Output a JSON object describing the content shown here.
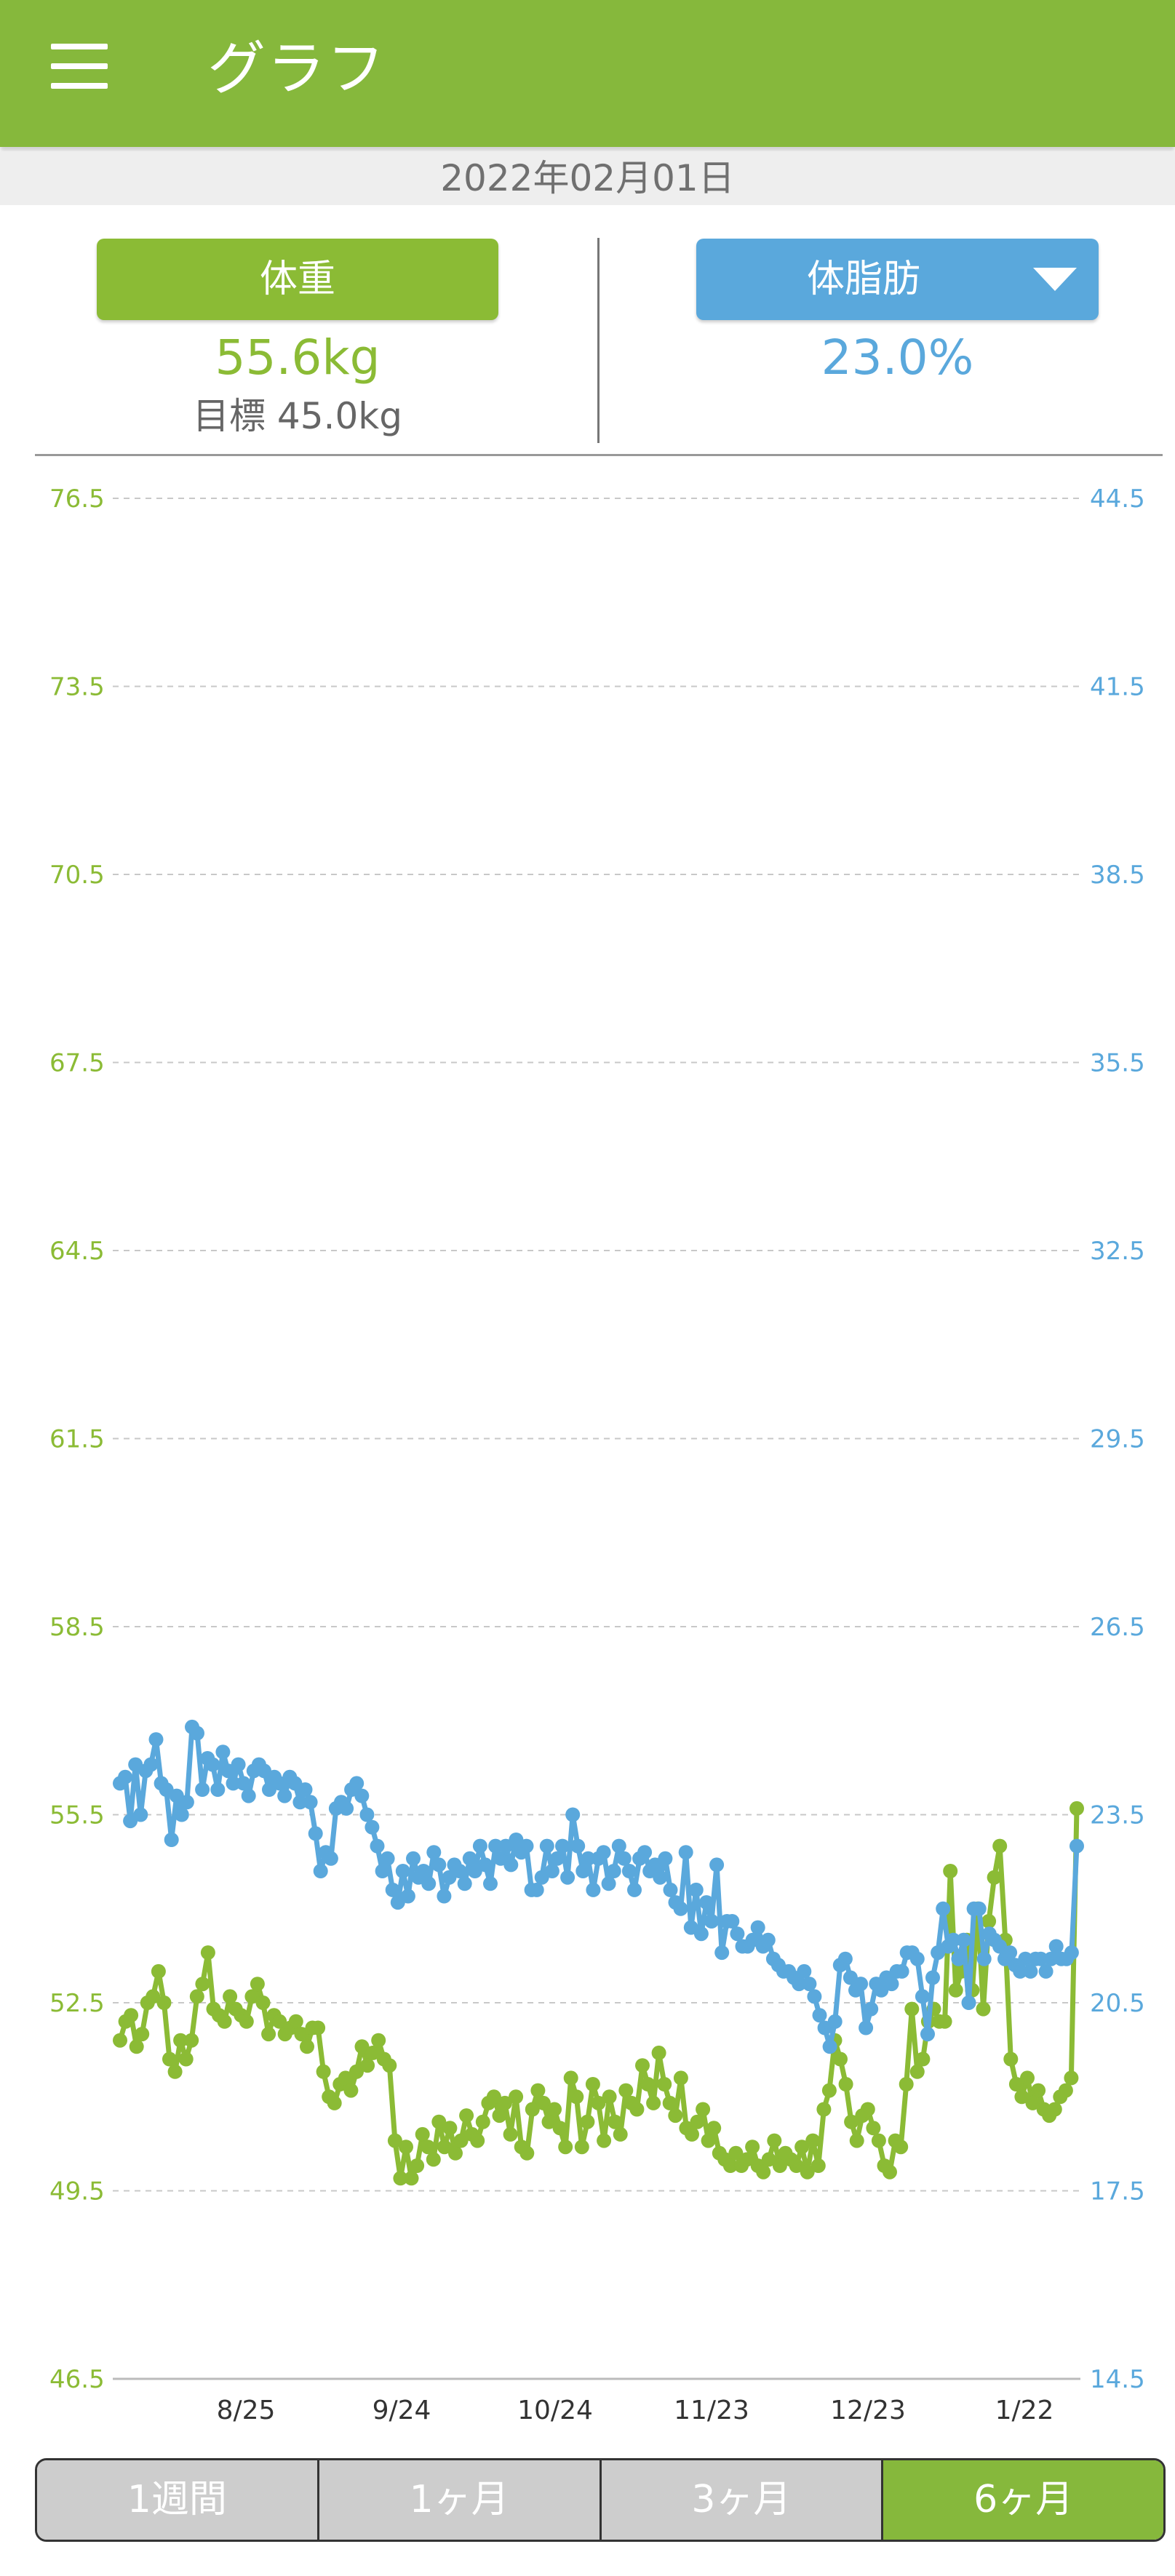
{
  "appbar": {
    "title": "グラフ"
  },
  "date": "2022年02月01日",
  "header": {
    "weight_button": "体重",
    "weight_value": "55.6kg",
    "target": "目標 45.0kg",
    "fat_button": "体脂肪",
    "fat_value": "23.0%"
  },
  "tabs": [
    {
      "label": "1週間",
      "active": false
    },
    {
      "label": "1ヶ月",
      "active": false
    },
    {
      "label": "3ヶ月",
      "active": false
    },
    {
      "label": "6ヶ月",
      "active": true
    }
  ],
  "colors": {
    "green": "#8bbb35",
    "blue": "#5aa8dc",
    "appbar": "#86b83c"
  },
  "chart_data": {
    "type": "line",
    "x_tick_labels": [
      "8/25",
      "9/24",
      "10/24",
      "11/23",
      "12/23",
      "1/22"
    ],
    "y_left": {
      "ticks": [
        "76.5",
        "73.5",
        "70.5",
        "67.5",
        "64.5",
        "61.5",
        "58.5",
        "55.5",
        "52.5",
        "49.5",
        "46.5"
      ],
      "min": 46.5,
      "max": 76.5
    },
    "y_right": {
      "ticks": [
        "44.5",
        "41.5",
        "38.5",
        "35.5",
        "32.5",
        "29.5",
        "26.5",
        "23.5",
        "20.5",
        "17.5",
        "14.5"
      ],
      "min": 14.5,
      "max": 44.5
    },
    "grid": "horizontal-dashed",
    "series": [
      {
        "axis": "left",
        "color": "#8bbb35",
        "values": [
          51.9,
          52.2,
          52.3,
          51.8,
          52.0,
          52.5,
          52.6,
          53.0,
          52.5,
          51.6,
          51.4,
          51.9,
          51.6,
          51.9,
          52.6,
          52.8,
          53.3,
          52.4,
          52.3,
          52.2,
          52.6,
          52.4,
          52.3,
          52.2,
          52.6,
          52.8,
          52.5,
          52.0,
          52.3,
          52.2,
          52.0,
          52.1,
          52.2,
          52.0,
          51.8,
          52.1,
          52.1,
          51.4,
          51.0,
          50.9,
          51.2,
          51.3,
          51.1,
          51.4,
          51.8,
          51.5,
          51.7,
          51.9,
          51.6,
          51.5,
          50.3,
          49.7,
          50.2,
          49.7,
          49.9,
          50.4,
          50.2,
          50.0,
          50.6,
          50.2,
          50.5,
          50.1,
          50.3,
          50.7,
          50.4,
          50.3,
          50.6,
          50.9,
          51.0,
          50.7,
          50.9,
          50.4,
          51.0,
          50.2,
          50.1,
          50.8,
          51.1,
          50.9,
          50.6,
          50.8,
          50.5,
          50.2,
          51.3,
          51.0,
          50.2,
          50.6,
          51.2,
          50.9,
          50.3,
          51.0,
          50.6,
          50.4,
          51.1,
          50.9,
          50.8,
          51.5,
          51.2,
          50.9,
          51.7,
          51.2,
          50.9,
          50.7,
          51.3,
          50.5,
          50.4,
          50.6,
          50.8,
          50.3,
          50.5,
          50.1,
          50.0,
          49.9,
          50.1,
          49.9,
          50.0,
          50.2,
          49.9,
          49.8,
          50.0,
          50.3,
          49.9,
          50.1,
          50.0,
          49.9,
          50.2,
          49.8,
          50.3,
          49.9,
          50.8,
          51.1,
          51.9,
          51.6,
          51.2,
          50.6,
          50.3,
          50.7,
          50.8,
          50.5,
          50.3,
          49.9,
          49.8,
          50.3,
          50.2,
          51.2,
          52.4,
          51.4,
          51.6,
          52.2,
          52.4,
          52.2,
          52.2,
          54.6,
          52.7,
          53.0,
          53.5,
          52.7,
          54.0,
          52.4,
          53.8,
          54.5,
          55.0,
          53.5,
          51.6,
          51.2,
          51.0,
          51.3,
          50.9,
          51.1,
          50.8,
          50.7,
          50.8,
          51.0,
          51.1,
          51.3,
          55.6
        ]
      },
      {
        "axis": "right",
        "color": "#5aa8dc",
        "values": [
          24.0,
          24.1,
          23.4,
          24.3,
          23.5,
          24.2,
          24.3,
          24.7,
          24.0,
          23.9,
          23.1,
          23.8,
          23.5,
          23.7,
          24.9,
          24.8,
          23.9,
          24.4,
          24.3,
          23.9,
          24.5,
          24.2,
          24.0,
          24.3,
          24.0,
          23.8,
          24.2,
          24.3,
          24.2,
          23.9,
          24.1,
          24.0,
          23.8,
          24.1,
          24.0,
          23.7,
          23.9,
          23.7,
          23.2,
          22.6,
          22.9,
          22.8,
          23.6,
          23.7,
          23.6,
          23.9,
          24.0,
          23.8,
          23.5,
          23.3,
          23.0,
          22.6,
          22.8,
          22.3,
          22.1,
          22.6,
          22.2,
          22.8,
          22.5,
          22.6,
          22.4,
          22.9,
          22.7,
          22.2,
          22.5,
          22.7,
          22.6,
          22.4,
          22.8,
          22.6,
          23.0,
          22.7,
          22.4,
          23.0,
          22.8,
          23.0,
          22.7,
          23.1,
          22.9,
          23.0,
          22.3,
          22.3,
          22.5,
          23.0,
          22.6,
          22.8,
          23.0,
          22.5,
          23.5,
          23.0,
          22.6,
          22.8,
          22.3,
          22.8,
          22.9,
          22.4,
          22.6,
          23.0,
          22.8,
          22.6,
          22.3,
          22.8,
          22.9,
          22.6,
          22.7,
          22.5,
          22.8,
          22.3,
          22.1,
          22.0,
          22.9,
          21.7,
          22.3,
          21.6,
          22.1,
          21.8,
          22.7,
          21.3,
          21.8,
          21.8,
          21.6,
          21.4,
          21.4,
          21.5,
          21.7,
          21.4,
          21.5,
          21.2,
          21.1,
          21.0,
          21.0,
          20.9,
          20.8,
          21.0,
          20.8,
          20.6,
          20.3,
          20.1,
          19.8,
          20.2,
          21.1,
          21.2,
          20.9,
          20.7,
          20.8,
          20.1,
          20.4,
          20.8,
          20.7,
          20.9,
          20.8,
          21.0,
          21.0,
          21.3,
          21.3,
          21.2,
          20.6,
          20.0,
          20.9,
          21.3,
          22.0,
          21.4,
          21.5,
          21.2,
          21.5,
          20.5,
          22.0,
          22.0,
          21.2,
          21.6,
          21.5,
          21.4,
          21.2,
          21.3,
          21.1,
          21.0,
          21.2,
          21.0,
          21.2,
          21.2,
          21.0,
          21.2,
          21.4,
          21.2,
          21.2,
          21.3,
          23.0
        ]
      }
    ]
  }
}
